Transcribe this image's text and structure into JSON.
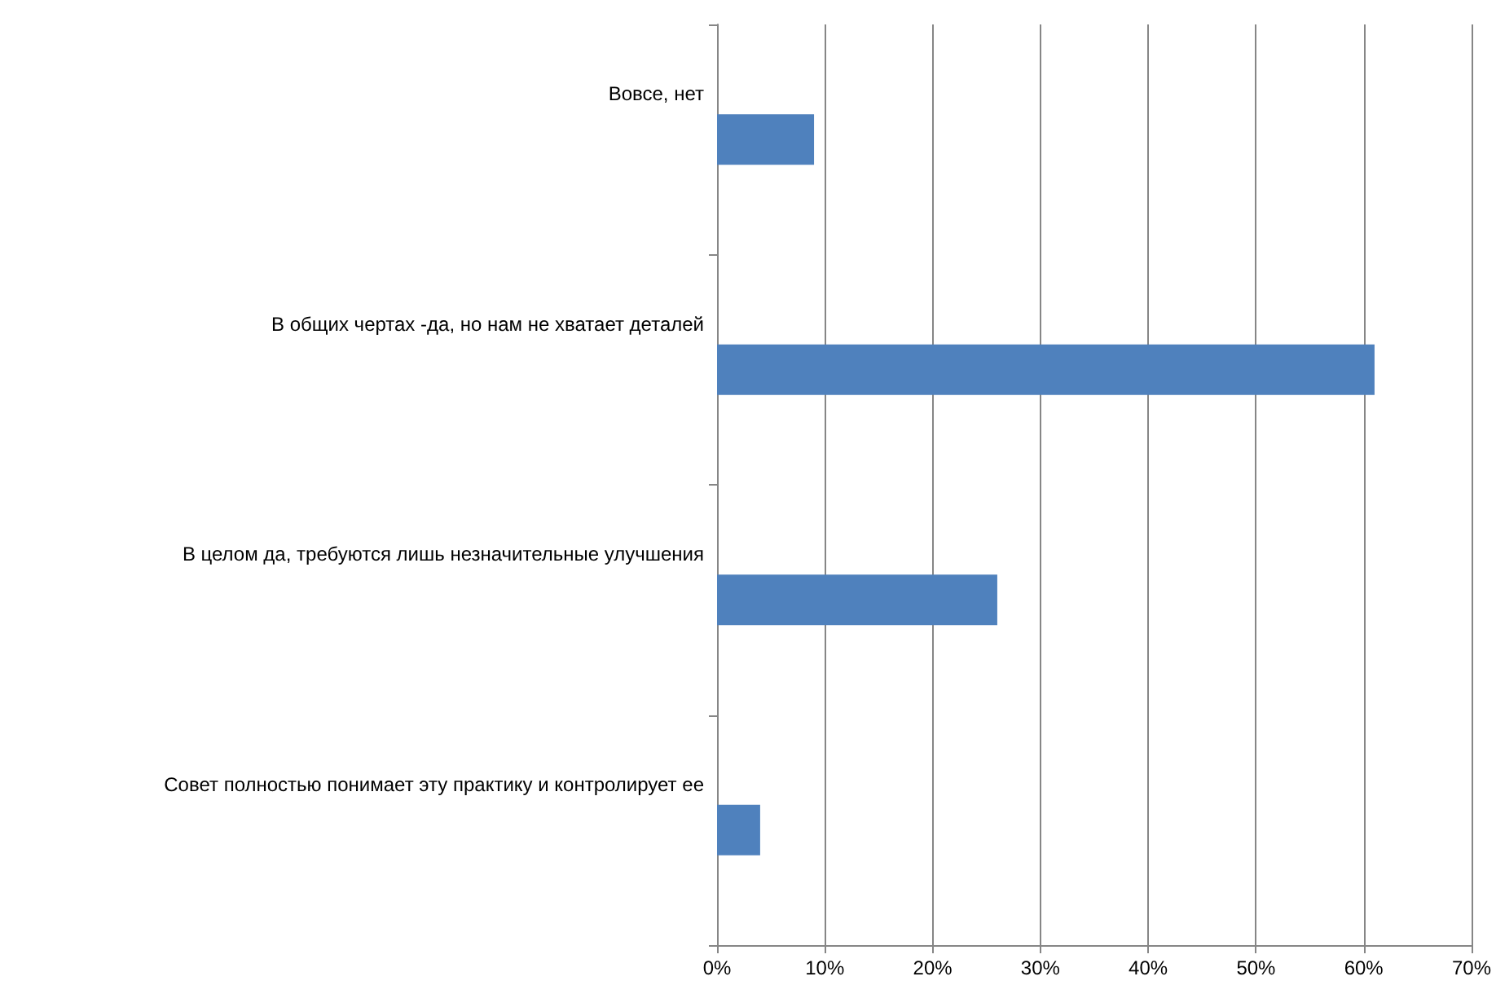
{
  "chart_data": {
    "type": "bar",
    "orientation": "horizontal",
    "categories": [
      "Вовсе, нет",
      "В общих чертах -да, но нам не хватает деталей",
      "В целом да, требуются лишь незначительные улучшения",
      "Совет полностью понимает эту практику и контролирует ее"
    ],
    "values": [
      9,
      61,
      26,
      4
    ],
    "color": "#4f81bd",
    "xlim": [
      0,
      70
    ],
    "xticks": [
      {
        "value": 0,
        "label": "0%"
      },
      {
        "value": 10,
        "label": "10%"
      },
      {
        "value": 20,
        "label": "20%"
      },
      {
        "value": 30,
        "label": "30%"
      },
      {
        "value": 40,
        "label": "40%"
      },
      {
        "value": 50,
        "label": "50%"
      },
      {
        "value": 60,
        "label": "60%"
      },
      {
        "value": 70,
        "label": "70%"
      }
    ],
    "grid": "x"
  }
}
